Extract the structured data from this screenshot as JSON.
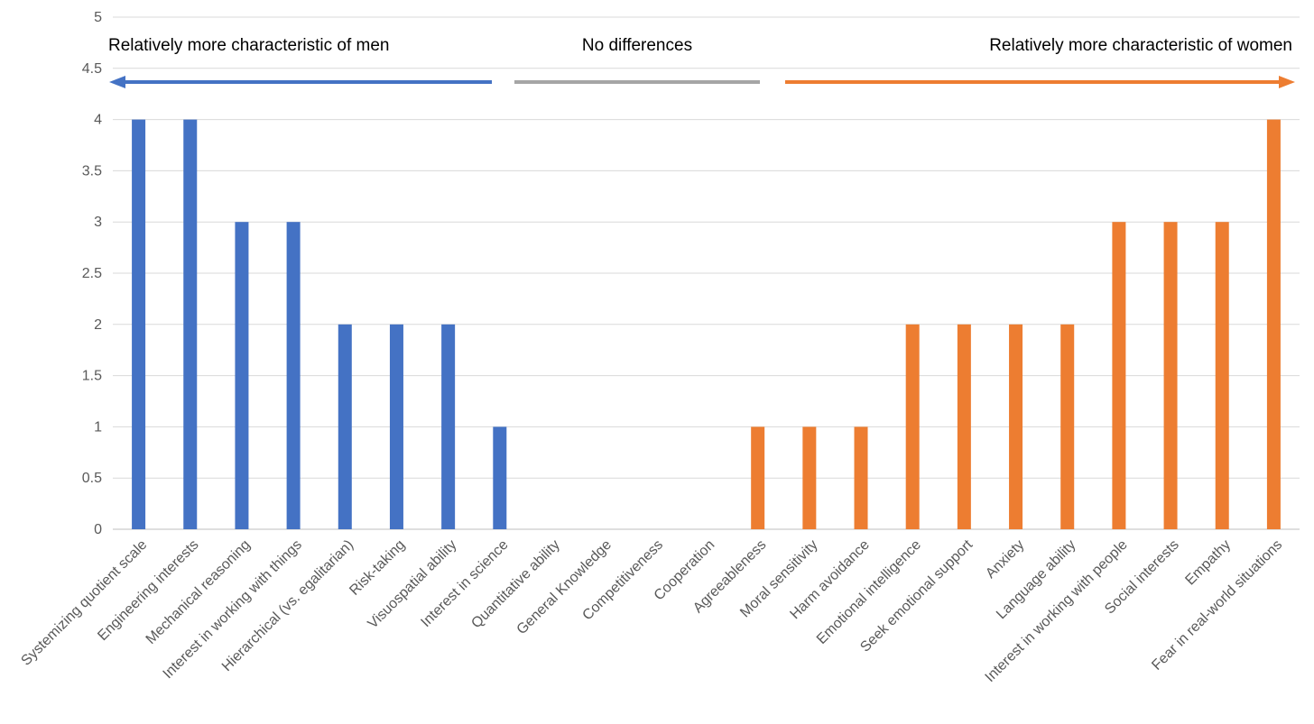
{
  "chart_data": {
    "type": "bar",
    "title": "",
    "xlabel": "",
    "ylabel": "",
    "ylim": [
      0,
      5
    ],
    "yticks": [
      "0",
      "0.5",
      "1",
      "1.5",
      "2",
      "2.5",
      "3",
      "3.5",
      "4",
      "4.5",
      "5"
    ],
    "grid": true,
    "categories": [
      "Systemizing quotient scale",
      "Engineering interests",
      "Mechanical reasoning",
      "Interest in working with things",
      "Hierarchical (vs. egalitarian)",
      "Risk-taking",
      "Visuospatial ability",
      "Interest in science",
      "Quantitative ability",
      "General Knowledge",
      "Competitiveness",
      "Cooperation",
      "Agreeableness",
      "Moral sensitivity",
      "Harm avoidance",
      "Emotional intelligence",
      "Seek emotional support",
      "Anxiety",
      "Language ability",
      "Interest in working with people",
      "Social interests",
      "Empathy",
      "Fear in real-world situations"
    ],
    "values": [
      4,
      4,
      3,
      3,
      2,
      2,
      2,
      1,
      0,
      0,
      0,
      0,
      1,
      1,
      1,
      2,
      2,
      2,
      2,
      3,
      3,
      3,
      4
    ],
    "groups": [
      "men",
      "men",
      "men",
      "men",
      "men",
      "men",
      "men",
      "men",
      "none",
      "none",
      "none",
      "none",
      "women",
      "women",
      "women",
      "women",
      "women",
      "women",
      "women",
      "women",
      "women",
      "women",
      "women"
    ],
    "colors": {
      "men": "#4472c4",
      "women": "#ed7d31",
      "none": "#a5a5a5"
    },
    "annotations": {
      "men": "Relatively more characteristic of men",
      "none": "No differences",
      "women": "Relatively more characteristic of women"
    }
  }
}
